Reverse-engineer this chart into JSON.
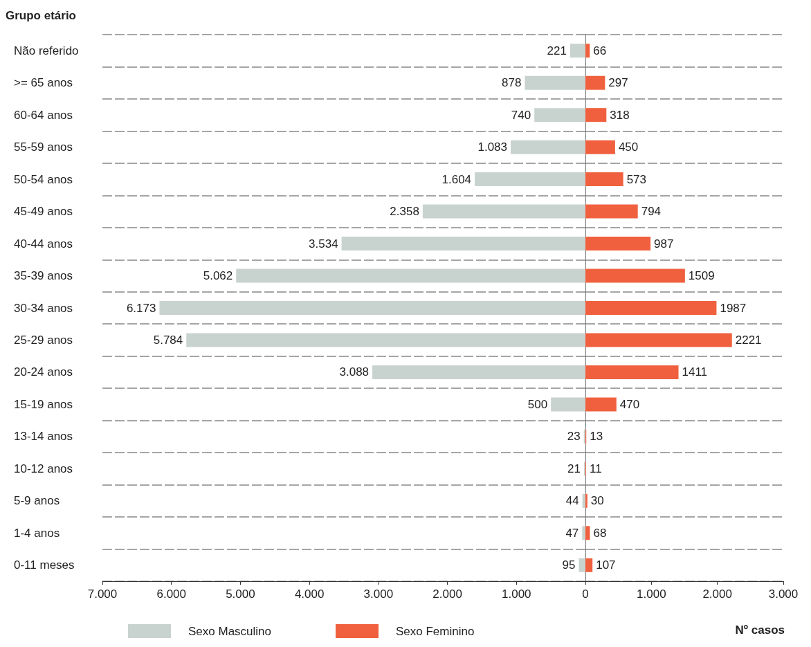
{
  "chart_data": [
    {
      "type": "bar",
      "orientation": "horizontal",
      "ylabel": "Grupo etário",
      "categories": [
        "Não referido",
        ">= 65 anos",
        "60-64 anos",
        "55-59 anos",
        "50-54 anos",
        "45-49 anos",
        "40-44 anos",
        "35-39 anos",
        "30-34 anos",
        "25-29 anos",
        "20-24 anos",
        "15-19 anos",
        "13-14 anos",
        "10-12 anos",
        "5-9 anos",
        "1-4 anos",
        "0-11 meses"
      ],
      "series": [
        {
          "name": "Sexo Masculino",
          "color": "#c8d3d0",
          "values": [
            221,
            878,
            740,
            1083,
            1604,
            2358,
            3534,
            5062,
            6173,
            5784,
            3088,
            500,
            23,
            21,
            44,
            47,
            95
          ],
          "value_labels": [
            "221",
            "878",
            "740",
            "1.083",
            "1.604",
            "2.358",
            "3.534",
            "5.062",
            "6.173",
            "5.784",
            "3.088",
            "500",
            "23",
            "21",
            "44",
            "47",
            "95"
          ]
        }
      ],
      "xlim": [
        7000,
        0
      ],
      "xticks": [
        {
          "value": 7000,
          "label": "7.000"
        },
        {
          "value": 6000,
          "label": "6.000"
        },
        {
          "value": 5000,
          "label": "5.000"
        },
        {
          "value": 4000,
          "label": "4.000"
        },
        {
          "value": 3000,
          "label": "3.000"
        },
        {
          "value": 2000,
          "label": "2.000"
        },
        {
          "value": 1000,
          "label": "1.000"
        },
        0
      ],
      "grid": "y",
      "legend": "bottom left"
    },
    {
      "type": "bar",
      "orientation": "horizontal",
      "xlabel": "Nº casos",
      "categories": [
        null,
        null,
        null,
        null,
        null,
        null,
        null,
        null,
        null,
        null,
        null,
        null,
        null,
        null,
        null,
        null,
        null
      ],
      "series": [
        {
          "name": "Sexo Feminino",
          "color": "#f0603e",
          "values": [
            66,
            297,
            318,
            450,
            573,
            794,
            987,
            1509,
            1987,
            2221,
            1411,
            470,
            13,
            11,
            30,
            68,
            107
          ]
        }
      ],
      "xlim": [
        0,
        3000
      ],
      "xticks": [
        {
          "value": 0,
          "label": null
        },
        {
          "value": 1000,
          "label": "1.000"
        },
        {
          "value": 2000,
          "label": "2.000"
        },
        {
          "value": 3000,
          "label": "3.000"
        }
      ],
      "grid": "y",
      "legend": "bottom",
      "tick_labels": "x",
      "data_labels": true
    }
  ]
}
